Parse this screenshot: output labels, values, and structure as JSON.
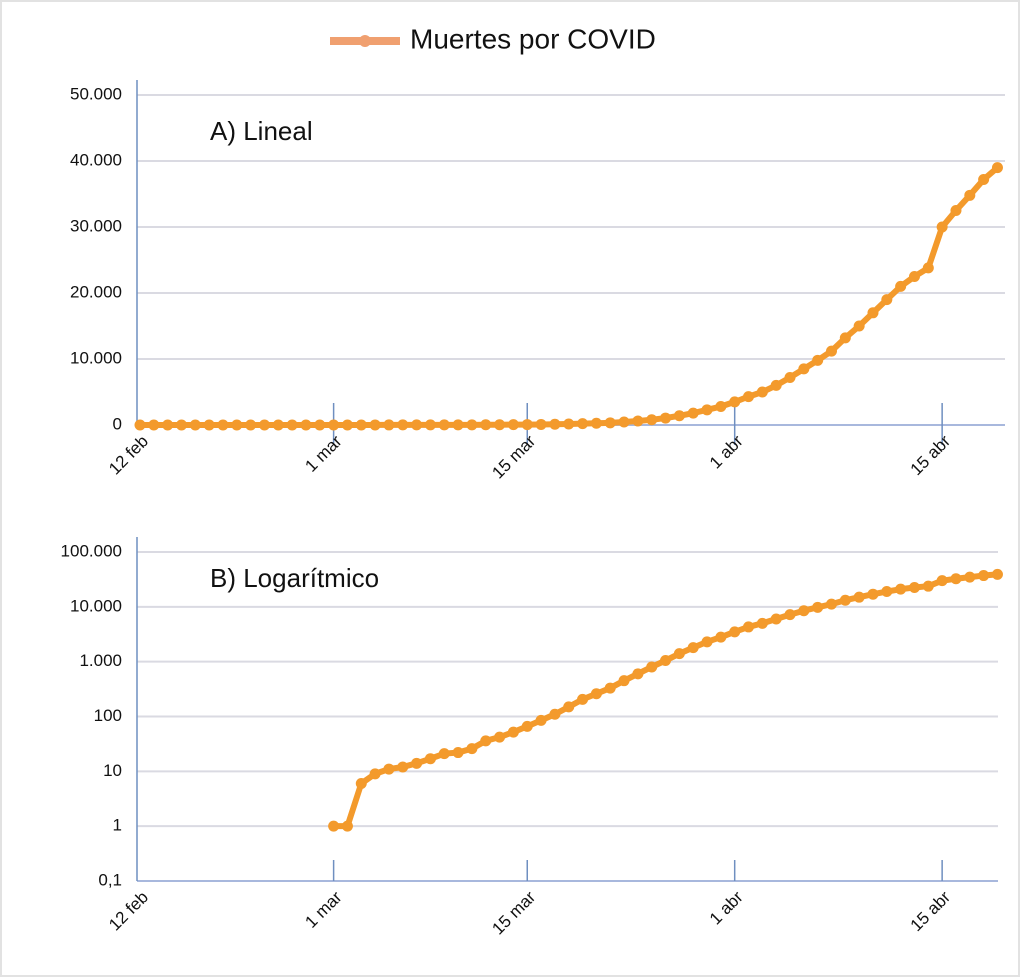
{
  "chart_data": [
    {
      "type": "line",
      "title": "A) Lineal",
      "categories": [
        "12 feb",
        null,
        null,
        null,
        null,
        null,
        null,
        null,
        null,
        null,
        null,
        null,
        null,
        null,
        "1 mar",
        null,
        null,
        null,
        null,
        null,
        null,
        null,
        null,
        null,
        null,
        null,
        null,
        null,
        "15 mar",
        null,
        null,
        null,
        null,
        null,
        null,
        null,
        null,
        null,
        null,
        null,
        null,
        null,
        null,
        "1 abr",
        null,
        null,
        null,
        null,
        null,
        null,
        null,
        null,
        null,
        null,
        null,
        null,
        null,
        null,
        "15 abr",
        null,
        null,
        null,
        null
      ],
      "series": [
        {
          "name": "Muertes por COVID",
          "color": "#f39a2c",
          "values": [
            0,
            0,
            0,
            0,
            0,
            0,
            0,
            0,
            0,
            0,
            0,
            0,
            0,
            0,
            1,
            1,
            6,
            9,
            11,
            12,
            14,
            17,
            21,
            22,
            26,
            36,
            42,
            52,
            66,
            85,
            110,
            150,
            205,
            260,
            330,
            450,
            600,
            800,
            1050,
            1400,
            1800,
            2300,
            2800,
            3500,
            4300,
            5000,
            6000,
            7200,
            8500,
            9800,
            11200,
            13200,
            15000,
            17000,
            19000,
            21000,
            22500,
            23800,
            30000,
            32500,
            34800,
            37200,
            39000
          ]
        }
      ],
      "ylim": [
        0,
        50000
      ],
      "yticks": [
        0,
        {
          "value": 10000,
          "label": "10.000"
        },
        {
          "value": 20000,
          "label": "20.000"
        },
        {
          "value": 30000,
          "label": "30.000"
        },
        {
          "value": 40000,
          "label": "40.000"
        },
        {
          "value": 50000,
          "label": "50.000"
        }
      ],
      "grid": true,
      "log": false
    },
    {
      "type": "line",
      "title": "B) Logarítmico",
      "categories": [
        "12 feb",
        null,
        null,
        null,
        null,
        null,
        null,
        null,
        null,
        null,
        null,
        null,
        null,
        null,
        "1 mar",
        null,
        null,
        null,
        null,
        null,
        null,
        null,
        null,
        null,
        null,
        null,
        null,
        null,
        "15 mar",
        null,
        null,
        null,
        null,
        null,
        null,
        null,
        null,
        null,
        null,
        null,
        null,
        null,
        null,
        "1 abr",
        null,
        null,
        null,
        null,
        null,
        null,
        null,
        null,
        null,
        null,
        null,
        null,
        null,
        null,
        "15 abr",
        null,
        null,
        null,
        null
      ],
      "series": [
        {
          "color": "#f39a2c",
          "values": [
            null,
            null,
            null,
            null,
            null,
            null,
            null,
            null,
            null,
            null,
            null,
            null,
            null,
            null,
            1,
            1,
            6,
            9,
            11,
            12,
            14,
            17,
            21,
            22,
            26,
            36,
            42,
            52,
            66,
            85,
            110,
            150,
            205,
            260,
            330,
            450,
            600,
            800,
            1050,
            1400,
            1800,
            2300,
            2800,
            3500,
            4300,
            5000,
            6000,
            7200,
            8500,
            9800,
            11200,
            13200,
            15000,
            17000,
            19000,
            21000,
            22500,
            23800,
            30000,
            32500,
            34800,
            37200,
            39000
          ]
        }
      ],
      "ylim": [
        0.1,
        100000
      ],
      "yticks": [
        {
          "value": 0.1,
          "label": "0,1"
        },
        1,
        10,
        100,
        {
          "value": 1000,
          "label": "1.000"
        },
        {
          "value": 10000,
          "label": "10.000"
        },
        {
          "value": 100000,
          "label": "100.000"
        }
      ],
      "grid": true,
      "log": true
    }
  ]
}
